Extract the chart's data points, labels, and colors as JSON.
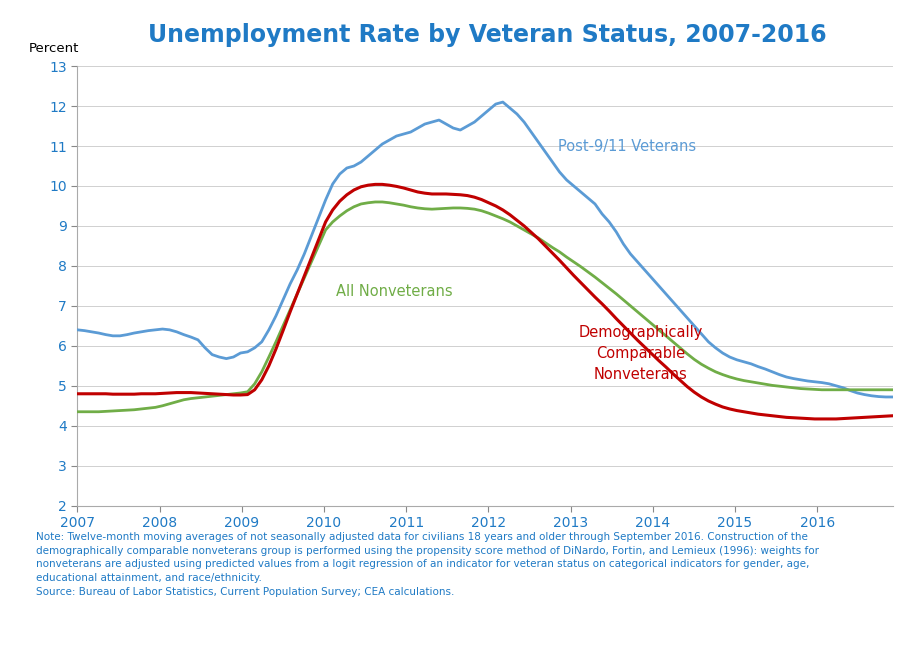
{
  "title": "Unemployment Rate by Veteran Status, 2007-2016",
  "title_color": "#1f7ac5",
  "ylabel": "Percent",
  "ylim": [
    2,
    13
  ],
  "yticks": [
    2,
    3,
    4,
    5,
    6,
    7,
    8,
    9,
    10,
    11,
    12,
    13
  ],
  "xlim_start": 2007.0,
  "xlim_end": 2016.92,
  "xtick_labels": [
    "2007",
    "2008",
    "2009",
    "2010",
    "2011",
    "2012",
    "2013",
    "2014",
    "2015",
    "2016"
  ],
  "xtick_positions": [
    2007,
    2008,
    2009,
    2010,
    2011,
    2012,
    2013,
    2014,
    2015,
    2016
  ],
  "line_colors": {
    "veterans": "#5b9bd5",
    "nonveterans": "#70ad47",
    "comparable": "#c00000"
  },
  "line_widths": {
    "veterans": 2.0,
    "nonveterans": 2.0,
    "comparable": 2.2
  },
  "label_veterans": "Post-9/11 Veterans",
  "label_nonveterans": "All Nonveterans",
  "label_comparable": "Demographically\nComparable\nNonveterans",
  "note_text": "Note: Twelve-month moving averages of not seasonally adjusted data for civilians 18 years and older through September 2016. Construction of the\ndemographically comparable nonveterans group is performed using the propensity score method of DiNardo, Fortin, and Lemieux (1996): weights for\nnonveterans are adjusted using predicted values from a logit regression of an indicator for veteran status on categorical indicators for gender, age,\neducational attainment, and race/ethnicity.\nSource: Bureau of Labor Statistics, Current Population Survey; CEA calculations.",
  "veterans": [
    6.4,
    6.38,
    6.35,
    6.32,
    6.28,
    6.25,
    6.25,
    6.28,
    6.32,
    6.35,
    6.38,
    6.4,
    6.42,
    6.4,
    6.35,
    6.28,
    6.22,
    6.15,
    5.95,
    5.78,
    5.72,
    5.68,
    5.72,
    5.82,
    5.85,
    5.95,
    6.1,
    6.4,
    6.75,
    7.15,
    7.55,
    7.9,
    8.3,
    8.75,
    9.2,
    9.65,
    10.05,
    10.3,
    10.45,
    10.5,
    10.6,
    10.75,
    10.9,
    11.05,
    11.15,
    11.25,
    11.3,
    11.35,
    11.45,
    11.55,
    11.6,
    11.65,
    11.55,
    11.45,
    11.4,
    11.5,
    11.6,
    11.75,
    11.9,
    12.05,
    12.1,
    11.95,
    11.8,
    11.6,
    11.35,
    11.1,
    10.85,
    10.6,
    10.35,
    10.15,
    10.0,
    9.85,
    9.7,
    9.55,
    9.3,
    9.1,
    8.85,
    8.55,
    8.3,
    8.1,
    7.9,
    7.7,
    7.5,
    7.3,
    7.1,
    6.9,
    6.7,
    6.5,
    6.3,
    6.1,
    5.95,
    5.82,
    5.72,
    5.65,
    5.6,
    5.55,
    5.48,
    5.42,
    5.35,
    5.28,
    5.22,
    5.18,
    5.15,
    5.12,
    5.1,
    5.08,
    5.05,
    5.0,
    4.95,
    4.88,
    4.82,
    4.78,
    4.75,
    4.73,
    4.72,
    4.72
  ],
  "nonveterans": [
    4.35,
    4.35,
    4.35,
    4.35,
    4.36,
    4.37,
    4.38,
    4.39,
    4.4,
    4.42,
    4.44,
    4.46,
    4.5,
    4.55,
    4.6,
    4.65,
    4.68,
    4.7,
    4.72,
    4.74,
    4.76,
    4.78,
    4.8,
    4.82,
    4.85,
    5.05,
    5.35,
    5.72,
    6.1,
    6.5,
    6.9,
    7.3,
    7.7,
    8.1,
    8.5,
    8.9,
    9.1,
    9.25,
    9.38,
    9.48,
    9.55,
    9.58,
    9.6,
    9.6,
    9.58,
    9.55,
    9.52,
    9.48,
    9.45,
    9.43,
    9.42,
    9.43,
    9.44,
    9.45,
    9.45,
    9.44,
    9.42,
    9.38,
    9.32,
    9.25,
    9.18,
    9.1,
    9.0,
    8.9,
    8.8,
    8.7,
    8.58,
    8.46,
    8.35,
    8.22,
    8.1,
    7.98,
    7.85,
    7.72,
    7.58,
    7.44,
    7.3,
    7.15,
    7.0,
    6.85,
    6.7,
    6.55,
    6.4,
    6.25,
    6.1,
    5.95,
    5.8,
    5.66,
    5.54,
    5.44,
    5.35,
    5.28,
    5.22,
    5.17,
    5.13,
    5.1,
    5.07,
    5.04,
    5.01,
    4.99,
    4.97,
    4.95,
    4.93,
    4.92,
    4.91,
    4.9,
    4.9,
    4.9,
    4.9,
    4.9,
    4.9,
    4.9,
    4.9,
    4.9,
    4.9,
    4.9
  ],
  "comparable": [
    4.8,
    4.8,
    4.8,
    4.8,
    4.8,
    4.79,
    4.79,
    4.79,
    4.79,
    4.8,
    4.8,
    4.8,
    4.81,
    4.82,
    4.83,
    4.83,
    4.83,
    4.82,
    4.81,
    4.8,
    4.79,
    4.78,
    4.77,
    4.77,
    4.78,
    4.9,
    5.15,
    5.5,
    5.92,
    6.38,
    6.85,
    7.3,
    7.75,
    8.2,
    8.65,
    9.1,
    9.4,
    9.62,
    9.78,
    9.9,
    9.98,
    10.02,
    10.04,
    10.04,
    10.02,
    9.99,
    9.95,
    9.9,
    9.85,
    9.82,
    9.8,
    9.8,
    9.8,
    9.79,
    9.78,
    9.76,
    9.72,
    9.66,
    9.58,
    9.5,
    9.4,
    9.28,
    9.14,
    9.0,
    8.84,
    8.68,
    8.5,
    8.32,
    8.14,
    7.95,
    7.76,
    7.58,
    7.4,
    7.22,
    7.05,
    6.87,
    6.68,
    6.5,
    6.32,
    6.14,
    5.97,
    5.8,
    5.63,
    5.47,
    5.3,
    5.14,
    4.98,
    4.84,
    4.72,
    4.62,
    4.54,
    4.47,
    4.42,
    4.38,
    4.35,
    4.32,
    4.29,
    4.27,
    4.25,
    4.23,
    4.21,
    4.2,
    4.19,
    4.18,
    4.17,
    4.17,
    4.17,
    4.17,
    4.18,
    4.19,
    4.2,
    4.21,
    4.22,
    4.23,
    4.24,
    4.25
  ]
}
